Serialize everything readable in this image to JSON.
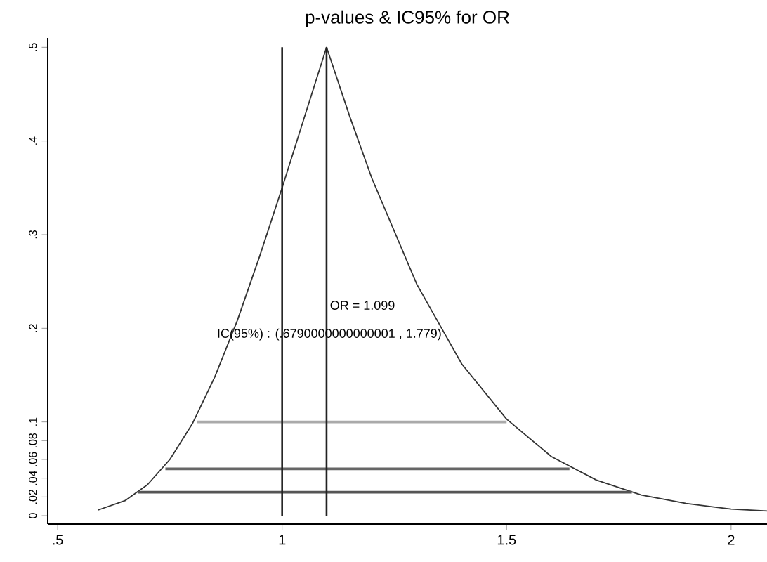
{
  "chart_data": {
    "type": "line",
    "title": "p-values & IC95%  for OR",
    "xlim": [
      0.478,
      2.08
    ],
    "ylim": [
      -0.009,
      0.51
    ],
    "xticks": [
      {
        "value": 0.5,
        "label": ".5"
      },
      1,
      1.5,
      2
    ],
    "yticks": [
      0,
      {
        "value": 0.02,
        "label": ".02"
      },
      {
        "value": 0.04,
        "label": ".04"
      },
      {
        "value": 0.06,
        "label": ".06"
      },
      {
        "value": 0.08,
        "label": ".08"
      },
      {
        "value": 0.1,
        "label": ".1"
      },
      {
        "value": 0.2,
        "label": ".2"
      },
      {
        "value": 0.3,
        "label": ".3"
      },
      {
        "value": 0.4,
        "label": ".4"
      },
      {
        "value": 0.5,
        "label": ".5"
      }
    ],
    "grid": false,
    "legend": false,
    "marker": "none",
    "series": [
      {
        "color": "#333333",
        "x": [
          0.59,
          0.65,
          0.7,
          0.75,
          0.8,
          0.85,
          0.9,
          0.95,
          1.0,
          1.05,
          1.099,
          1.15,
          1.2,
          1.3,
          1.4,
          1.5,
          1.6,
          1.7,
          1.8,
          1.9,
          2.0,
          2.08
        ],
        "values": [
          0.006,
          0.016,
          0.033,
          0.06,
          0.098,
          0.148,
          0.208,
          0.277,
          0.35,
          0.426,
          0.5,
          0.427,
          0.36,
          0.247,
          0.162,
          0.103,
          0.063,
          0.038,
          0.022,
          0.013,
          0.007,
          0.005
        ]
      },
      {
        "color": "#aaaaaa",
        "x": [
          0.81,
          1.5
        ],
        "values": [
          0.1,
          0.1
        ]
      },
      {
        "color": "#666666",
        "x": [
          0.74,
          1.64
        ],
        "values": [
          0.05,
          0.05
        ]
      },
      {
        "color": "#555555",
        "x": [
          0.679,
          1.779
        ],
        "values": [
          0.025,
          0.025
        ]
      }
    ],
    "ref_lines": [
      {
        "axis": "x",
        "value": 1,
        "color": "#222222"
      },
      {
        "axis": "x",
        "value": 1.099,
        "color": "#222222"
      }
    ],
    "annotations": [
      "OR = 1.099",
      "IC(95%) : (.6790000000000001 , 1.779)"
    ]
  }
}
